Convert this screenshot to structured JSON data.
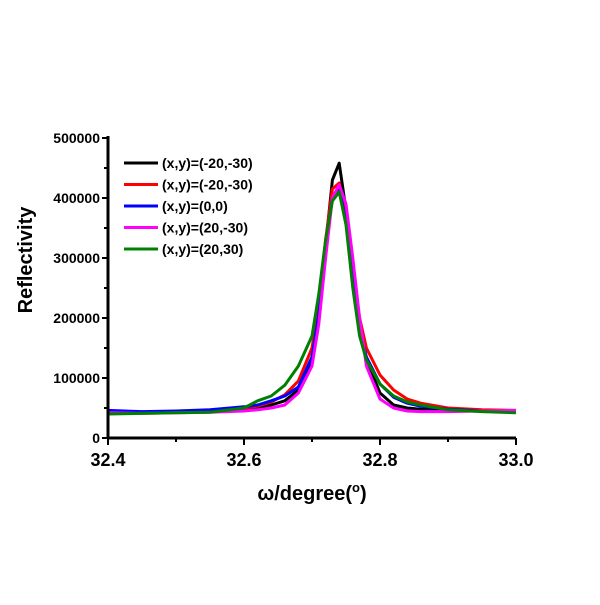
{
  "chart_data": {
    "type": "line",
    "title": "",
    "xlabel": "ω/degree(°)",
    "xlabel_main": "ω/degree(",
    "xlabel_sup": "o",
    "xlabel_end": ")",
    "ylabel": "Reflectivity",
    "xlim": [
      32.4,
      33.0
    ],
    "ylim": [
      0,
      500000
    ],
    "xticks": [
      32.4,
      32.6,
      32.8,
      33.0
    ],
    "xtick_labels": [
      "32.4",
      "32.6",
      "32.8",
      "33.0"
    ],
    "yticks": [
      0,
      100000,
      200000,
      300000,
      400000,
      500000
    ],
    "ytick_labels": [
      "0",
      "100000",
      "200000",
      "300000",
      "400000",
      "500000"
    ],
    "grid": false,
    "legend_placement": "top-left",
    "x": [
      32.4,
      32.45,
      32.5,
      32.55,
      32.6,
      32.62,
      32.64,
      32.66,
      32.68,
      32.7,
      32.71,
      32.72,
      32.73,
      32.74,
      32.75,
      32.76,
      32.77,
      32.78,
      32.8,
      32.82,
      32.84,
      32.86,
      32.9,
      32.95,
      33.0
    ],
    "series": [
      {
        "name": "(x,y)=(-20,-30)",
        "color": "#000000",
        "values": [
          45000,
          42000,
          43000,
          45000,
          48000,
          50000,
          55000,
          62000,
          80000,
          130000,
          200000,
          320000,
          430000,
          458000,
          380000,
          260000,
          180000,
          130000,
          75000,
          55000,
          50000,
          48000,
          46000,
          45000,
          45000
        ]
      },
      {
        "name": "(x,y)=(-20,-30)",
        "color": "#ff0000",
        "values": [
          44000,
          43000,
          44000,
          46000,
          50000,
          53000,
          60000,
          72000,
          95000,
          150000,
          220000,
          330000,
          415000,
          425000,
          370000,
          270000,
          200000,
          150000,
          105000,
          80000,
          65000,
          58000,
          50000,
          47000,
          46000
        ]
      },
      {
        "name": "(x,y)=(0,0)",
        "color": "#0000ff",
        "values": [
          46000,
          44000,
          45000,
          47000,
          52000,
          55000,
          62000,
          70000,
          85000,
          135000,
          205000,
          320000,
          400000,
          415000,
          360000,
          260000,
          180000,
          135000,
          90000,
          68000,
          58000,
          53000,
          48000,
          45000,
          44000
        ]
      },
      {
        "name": "(x,y)=(20,-30)",
        "color": "#ff00ff",
        "values": [
          42000,
          41000,
          42000,
          43000,
          45000,
          47000,
          50000,
          55000,
          75000,
          120000,
          190000,
          300000,
          400000,
          422000,
          390000,
          300000,
          200000,
          120000,
          65000,
          50000,
          45000,
          44000,
          44000,
          45000,
          46000
        ]
      },
      {
        "name": "(x,y)=(20,30)",
        "color": "#008000",
        "values": [
          40000,
          41000,
          42000,
          43000,
          50000,
          62000,
          70000,
          88000,
          120000,
          170000,
          240000,
          330000,
          395000,
          410000,
          355000,
          250000,
          170000,
          130000,
          90000,
          70000,
          60000,
          55000,
          47000,
          44000,
          42000
        ]
      }
    ]
  }
}
